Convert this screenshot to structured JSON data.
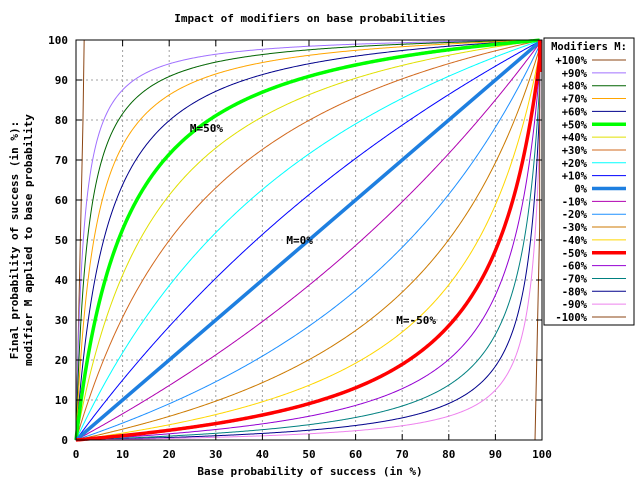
{
  "chart_data": {
    "type": "line",
    "title": "Impact of modifiers on base probabilities",
    "xlabel": "Base probability of success (in %)",
    "ylabel_line1": "Final probability of success (in %):",
    "ylabel_line2": "modifier M applied to base probability",
    "xlim": [
      0,
      100
    ],
    "ylim": [
      0,
      100
    ],
    "x_ticks": [
      "0",
      "10",
      "20",
      "30",
      "40",
      "50",
      "60",
      "70",
      "80",
      "90",
      "100"
    ],
    "y_ticks": [
      "0",
      "10",
      "20",
      "30",
      "40",
      "50",
      "60",
      "70",
      "80",
      "90",
      "100"
    ],
    "grid": true,
    "legend_title": "Modifiers M:",
    "legend_placement": "outside-right",
    "series": [
      {
        "name": "+100%",
        "modifier": 100,
        "color": "#8b4513",
        "bold": false
      },
      {
        "name": "+90%",
        "modifier": 90,
        "color": "#a070ff",
        "bold": false
      },
      {
        "name": "+80%",
        "modifier": 80,
        "color": "#006400",
        "bold": false
      },
      {
        "name": "+70%",
        "modifier": 70,
        "color": "#ffa500",
        "bold": false
      },
      {
        "name": "+60%",
        "modifier": 60,
        "color": "#00008b",
        "bold": false
      },
      {
        "name": "+50%",
        "modifier": 50,
        "color": "#00ff00",
        "bold": true
      },
      {
        "name": "+40%",
        "modifier": 40,
        "color": "#e0e000",
        "bold": false
      },
      {
        "name": "+30%",
        "modifier": 30,
        "color": "#d2691e",
        "bold": false
      },
      {
        "name": "+20%",
        "modifier": 20,
        "color": "#00ffff",
        "bold": false
      },
      {
        "name": "+10%",
        "modifier": 10,
        "color": "#0000ff",
        "bold": false
      },
      {
        "name": "0%",
        "modifier": 0,
        "color": "#1e7fe0",
        "bold": true
      },
      {
        "name": "-10%",
        "modifier": -10,
        "color": "#b000b0",
        "bold": false
      },
      {
        "name": "-20%",
        "modifier": -20,
        "color": "#1e90ff",
        "bold": false
      },
      {
        "name": "-30%",
        "modifier": -30,
        "color": "#cc7a00",
        "bold": false
      },
      {
        "name": "-40%",
        "modifier": -40,
        "color": "#ffd700",
        "bold": false
      },
      {
        "name": "-50%",
        "modifier": -50,
        "color": "#ff0000",
        "bold": true
      },
      {
        "name": "-60%",
        "modifier": -60,
        "color": "#9400d3",
        "bold": false
      },
      {
        "name": "-70%",
        "modifier": -70,
        "color": "#008080",
        "bold": false
      },
      {
        "name": "-80%",
        "modifier": -80,
        "color": "#00008b",
        "bold": false
      },
      {
        "name": "-90%",
        "modifier": -90,
        "color": "#ee82ee",
        "bold": false
      },
      {
        "name": "-100%",
        "modifier": -100,
        "color": "#8b4513",
        "bold": false
      }
    ],
    "annotations": [
      {
        "text": "M=50%",
        "x": 28,
        "y": 78
      },
      {
        "text": "M=0%",
        "x": 48,
        "y": 50
      },
      {
        "text": "M=-50%",
        "x": 73,
        "y": 30
      }
    ]
  }
}
